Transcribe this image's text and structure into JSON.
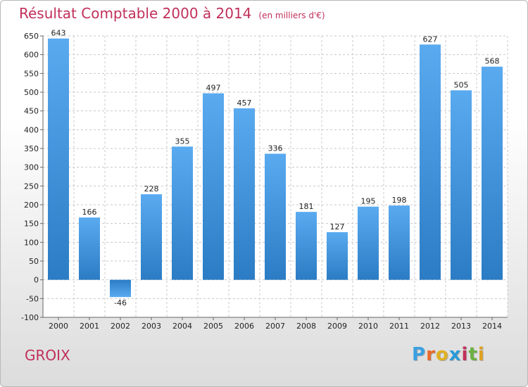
{
  "chart_data": {
    "type": "bar",
    "title": "Résultat Comptable 2000 à 2014",
    "subtitle": "(en milliers d'€)",
    "categories": [
      "2000",
      "2001",
      "2002",
      "2003",
      "2004",
      "2005",
      "2006",
      "2007",
      "2008",
      "2009",
      "2010",
      "2011",
      "2012",
      "2013",
      "2014"
    ],
    "values": [
      643,
      166,
      -46,
      228,
      355,
      497,
      457,
      336,
      181,
      127,
      195,
      198,
      627,
      505,
      568
    ],
    "ylim": [
      -100,
      650
    ],
    "yticks": [
      -100,
      -50,
      0,
      50,
      100,
      150,
      200,
      250,
      300,
      350,
      400,
      450,
      500,
      550,
      600,
      650
    ],
    "grid": true,
    "xlabel": "",
    "ylabel": ""
  },
  "footer": {
    "place": "GROIX",
    "logo": "Proxiti"
  },
  "colors": {
    "accent": "#c0305a",
    "bar": "#3a8fd6"
  }
}
